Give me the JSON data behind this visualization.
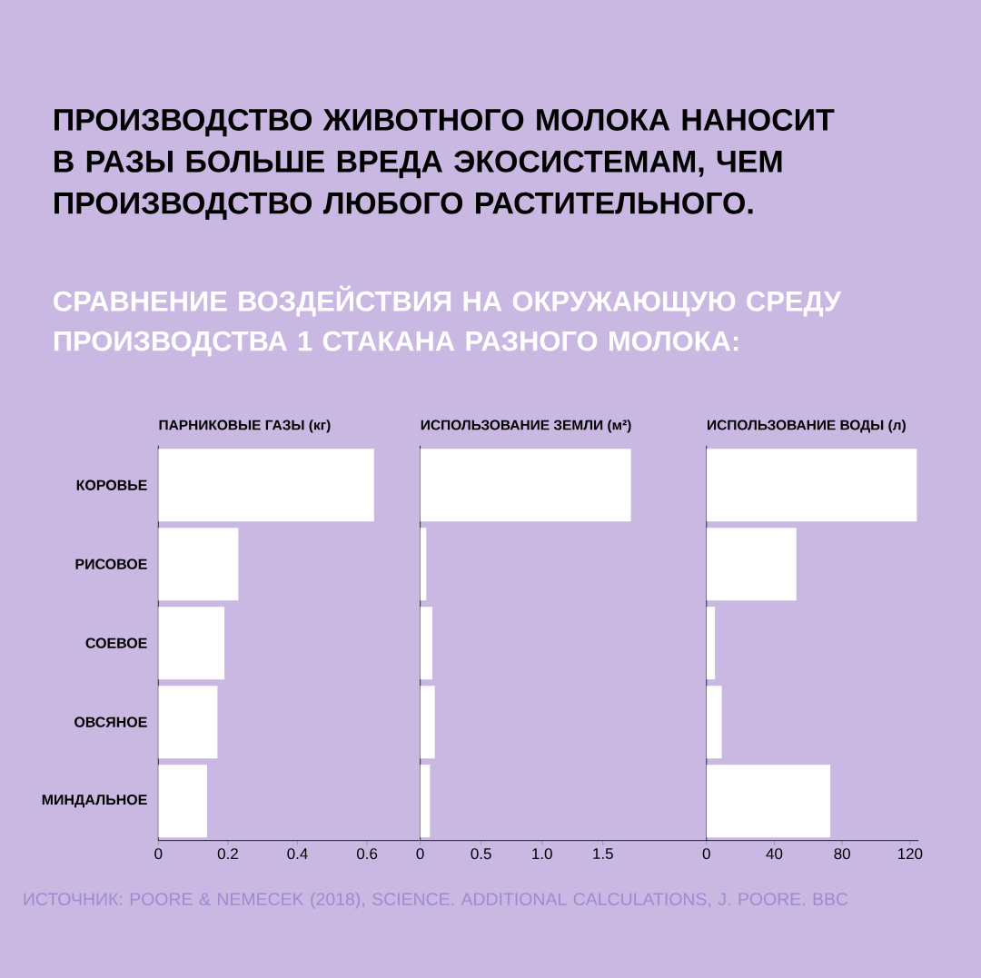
{
  "chart_data": [
    {
      "type": "bar",
      "orientation": "horizontal",
      "title": "ПАРНИКОВЫЕ ГАЗЫ (кг)",
      "categories": [
        "КОРОВЬЕ",
        "РИСОВОЕ",
        "СОЕВОЕ",
        "ОВСЯНОЕ",
        "МИНДАЛЬНОЕ"
      ],
      "series": [
        {
          "color": "#ffffff",
          "values": [
            0.62,
            0.23,
            0.19,
            0.17,
            0.14
          ]
        }
      ],
      "xlim": [
        0,
        0.75
      ],
      "xticks": [
        0,
        0.2,
        0.4,
        0.6
      ],
      "annotations": [
        "ПРОИЗВОДСТВО ЖИВОТНОГО МОЛОКА НАНОСИТ В РАЗЫ БОЛЬШЕ ВРЕДА ЭКОСИСТЕМАМ, ЧЕМ ПРОИЗВОДСТВО ЛЮБОГО РАСТИТЕЛЬНОГО.",
        "СРАВНЕНИЕ ВОЗДЕЙСТВИЯ НА ОКРУЖАЮЩУЮ СРЕДУ ПРОИЗВОДСТВА 1 СТАКАНА РАЗНОГО МОЛОКА:",
        "ИСТОЧНИК: POORE & NEMECEK (2018), SCIENCE. ADDITIONAL CALCULATIONS, J. POORE. BBC"
      ]
    },
    {
      "type": "bar",
      "orientation": "horizontal",
      "title": "ИСПОЛЬЗОВАНИЕ ЗЕМЛИ (м²)",
      "categories": [
        null,
        null,
        null,
        null,
        null
      ],
      "series": [
        {
          "color": "#ffffff",
          "values": [
            1.73,
            0.05,
            0.1,
            0.12,
            0.08
          ]
        }
      ],
      "xlim": [
        0,
        2.35
      ],
      "xticks": [
        0,
        0.5,
        {
          "value": 1,
          "label": "1.0"
        },
        1.5
      ]
    },
    {
      "type": "bar",
      "orientation": "horizontal",
      "title": "ИСПОЛЬЗОВАНИЕ ВОДЫ (л)",
      "categories": [
        null,
        null,
        null,
        null,
        null
      ],
      "series": [
        {
          "color": "#ffffff",
          "values": [
            124,
            53,
            5,
            9,
            73
          ]
        }
      ],
      "xlim": [
        0,
        125
      ],
      "xticks": [
        0,
        40,
        80,
        120
      ]
    }
  ]
}
